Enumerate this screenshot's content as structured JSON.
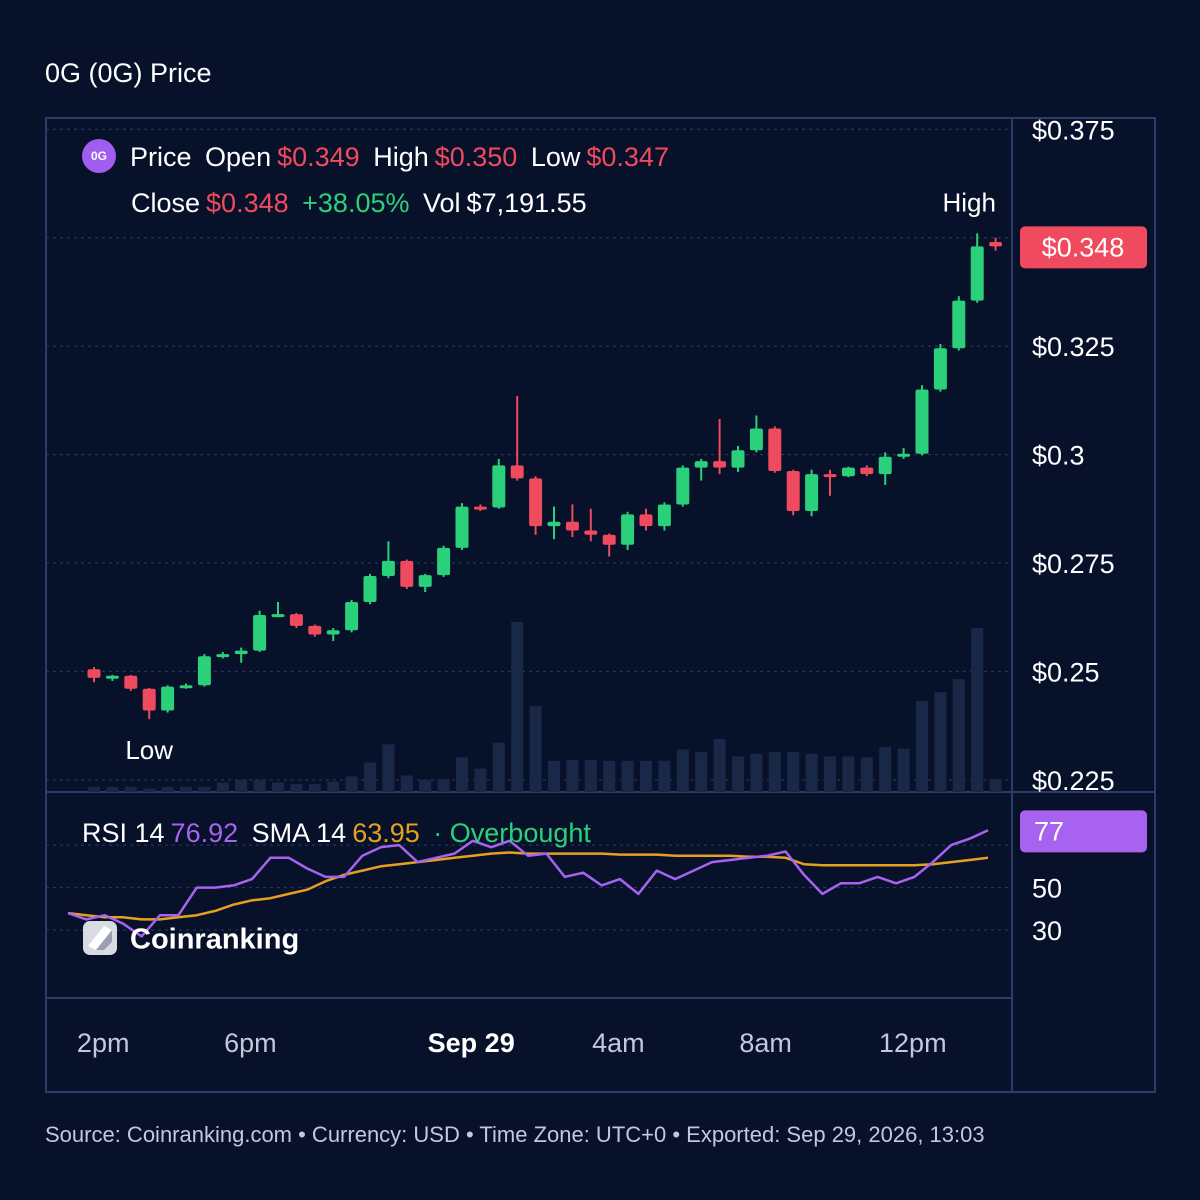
{
  "page_title": "0G (0G) Price",
  "legend": {
    "price_label": "Price",
    "open_label": "Open",
    "open_value": "$0.349",
    "high_label": "High",
    "high_value": "$0.350",
    "low_label": "Low",
    "low_value": "$0.347",
    "close_label": "Close",
    "close_value": "$0.348",
    "change": "+38.05%",
    "vol_label": "Vol",
    "vol_value": "$7,191.55"
  },
  "rsi_legend": {
    "rsi_label": "RSI 14",
    "rsi_value": "76.92",
    "sma_label": "SMA 14",
    "sma_value": "63.95",
    "status": "· Overbought"
  },
  "brand": "Coinranking",
  "footer": "Source: Coinranking.com • Currency: USD • Time Zone: UTC+0 • Exported: Sep 29, 2026, 13:03",
  "colors": {
    "up": "#2bd07a",
    "down": "#f04a5e",
    "rsi": "#a763f0",
    "sma": "#e6a020",
    "grid": "#2a3d66",
    "volume": "#1a2848",
    "background": "#07112a"
  },
  "chart_data": {
    "type": "candlestick",
    "price_axis": {
      "ticks": [
        0.375,
        0.325,
        0.3,
        0.275,
        0.25,
        0.225
      ],
      "tick_labels": [
        "$0.375",
        "$0.325",
        "$0.3",
        "$0.275",
        "$0.25",
        "$0.225"
      ],
      "range": [
        0.2222,
        0.3776
      ]
    },
    "x_axis_labels": [
      {
        "label": "2pm",
        "index": 0.5,
        "bold": false
      },
      {
        "label": "6pm",
        "index": 8.5,
        "bold": false
      },
      {
        "label": "Sep 29",
        "index": 20.5,
        "bold": true
      },
      {
        "label": "4am",
        "index": 28.5,
        "bold": false
      },
      {
        "label": "8am",
        "index": 36.5,
        "bold": false
      },
      {
        "label": "12pm",
        "index": 44.5,
        "bold": false
      }
    ],
    "current_price_label": "$0.348",
    "current_price": 0.348,
    "high_annotation": "High",
    "low_annotation": "Low",
    "candles": [
      {
        "o": 0.2505,
        "h": 0.251,
        "l": 0.2475,
        "c": 0.2485
      },
      {
        "o": 0.2485,
        "h": 0.2492,
        "l": 0.2478,
        "c": 0.249
      },
      {
        "o": 0.249,
        "h": 0.2492,
        "l": 0.2455,
        "c": 0.246
      },
      {
        "o": 0.246,
        "h": 0.2462,
        "l": 0.239,
        "c": 0.241
      },
      {
        "o": 0.241,
        "h": 0.2468,
        "l": 0.2405,
        "c": 0.2465
      },
      {
        "o": 0.2465,
        "h": 0.2472,
        "l": 0.246,
        "c": 0.2468
      },
      {
        "o": 0.2468,
        "h": 0.254,
        "l": 0.2465,
        "c": 0.2535
      },
      {
        "o": 0.2535,
        "h": 0.2545,
        "l": 0.253,
        "c": 0.254
      },
      {
        "o": 0.254,
        "h": 0.2555,
        "l": 0.252,
        "c": 0.2548
      },
      {
        "o": 0.2548,
        "h": 0.264,
        "l": 0.2545,
        "c": 0.263
      },
      {
        "o": 0.263,
        "h": 0.266,
        "l": 0.2625,
        "c": 0.2632
      },
      {
        "o": 0.2632,
        "h": 0.2635,
        "l": 0.26,
        "c": 0.2605
      },
      {
        "o": 0.2605,
        "h": 0.2608,
        "l": 0.258,
        "c": 0.2585
      },
      {
        "o": 0.2585,
        "h": 0.26,
        "l": 0.257,
        "c": 0.2595
      },
      {
        "o": 0.2595,
        "h": 0.2665,
        "l": 0.259,
        "c": 0.266
      },
      {
        "o": 0.266,
        "h": 0.2725,
        "l": 0.2655,
        "c": 0.272
      },
      {
        "o": 0.272,
        "h": 0.28,
        "l": 0.2715,
        "c": 0.2755
      },
      {
        "o": 0.2755,
        "h": 0.2758,
        "l": 0.269,
        "c": 0.2695
      },
      {
        "o": 0.2695,
        "h": 0.2725,
        "l": 0.2683,
        "c": 0.2722
      },
      {
        "o": 0.2722,
        "h": 0.279,
        "l": 0.2718,
        "c": 0.2785
      },
      {
        "o": 0.2785,
        "h": 0.2888,
        "l": 0.278,
        "c": 0.288
      },
      {
        "o": 0.288,
        "h": 0.2885,
        "l": 0.287,
        "c": 0.2878
      },
      {
        "o": 0.2878,
        "h": 0.299,
        "l": 0.2875,
        "c": 0.2975
      },
      {
        "o": 0.2975,
        "h": 0.3135,
        "l": 0.294,
        "c": 0.2945
      },
      {
        "o": 0.2945,
        "h": 0.295,
        "l": 0.2815,
        "c": 0.2835
      },
      {
        "o": 0.2835,
        "h": 0.288,
        "l": 0.2805,
        "c": 0.2845
      },
      {
        "o": 0.2845,
        "h": 0.2885,
        "l": 0.281,
        "c": 0.2825
      },
      {
        "o": 0.2825,
        "h": 0.2875,
        "l": 0.28,
        "c": 0.2815
      },
      {
        "o": 0.2815,
        "h": 0.2818,
        "l": 0.2765,
        "c": 0.2792
      },
      {
        "o": 0.2792,
        "h": 0.2868,
        "l": 0.278,
        "c": 0.2862
      },
      {
        "o": 0.2862,
        "h": 0.2875,
        "l": 0.2825,
        "c": 0.2835
      },
      {
        "o": 0.2835,
        "h": 0.289,
        "l": 0.2825,
        "c": 0.2885
      },
      {
        "o": 0.2885,
        "h": 0.2975,
        "l": 0.288,
        "c": 0.297
      },
      {
        "o": 0.297,
        "h": 0.299,
        "l": 0.294,
        "c": 0.2985
      },
      {
        "o": 0.2985,
        "h": 0.3082,
        "l": 0.2955,
        "c": 0.297
      },
      {
        "o": 0.297,
        "h": 0.302,
        "l": 0.296,
        "c": 0.301
      },
      {
        "o": 0.301,
        "h": 0.309,
        "l": 0.3005,
        "c": 0.306
      },
      {
        "o": 0.306,
        "h": 0.3065,
        "l": 0.2958,
        "c": 0.2962
      },
      {
        "o": 0.2962,
        "h": 0.2965,
        "l": 0.286,
        "c": 0.287
      },
      {
        "o": 0.287,
        "h": 0.2965,
        "l": 0.2858,
        "c": 0.2955
      },
      {
        "o": 0.2955,
        "h": 0.2965,
        "l": 0.2905,
        "c": 0.295
      },
      {
        "o": 0.295,
        "h": 0.2972,
        "l": 0.2948,
        "c": 0.297
      },
      {
        "o": 0.297,
        "h": 0.2975,
        "l": 0.295,
        "c": 0.2955
      },
      {
        "o": 0.2955,
        "h": 0.3005,
        "l": 0.293,
        "c": 0.2995
      },
      {
        "o": 0.2995,
        "h": 0.3015,
        "l": 0.299,
        "c": 0.3002
      },
      {
        "o": 0.3002,
        "h": 0.316,
        "l": 0.2998,
        "c": 0.315
      },
      {
        "o": 0.315,
        "h": 0.3255,
        "l": 0.3145,
        "c": 0.3245
      },
      {
        "o": 0.3245,
        "h": 0.3365,
        "l": 0.324,
        "c": 0.3355
      },
      {
        "o": 0.3355,
        "h": 0.351,
        "l": 0.335,
        "c": 0.348
      },
      {
        "o": 0.349,
        "h": 0.35,
        "l": 0.347,
        "c": 0.348
      }
    ],
    "volume": [
      0.6,
      0.6,
      0.6,
      0.4,
      0.6,
      0.6,
      0.6,
      1.1,
      1.4,
      1.4,
      1.1,
      0.9,
      0.9,
      1.2,
      1.8,
      3.4,
      5.5,
      1.9,
      1.4,
      1.5,
      4.0,
      2.7,
      5.7,
      19.6,
      9.9,
      3.6,
      3.7,
      3.7,
      3.6,
      3.6,
      3.6,
      3.6,
      4.9,
      4.6,
      6.1,
      4.1,
      4.4,
      4.6,
      4.6,
      4.4,
      4.1,
      4.1,
      4.0,
      5.2,
      5.0,
      10.5,
      11.5,
      13.0,
      18.9,
      1.5
    ],
    "rsi": {
      "axis_ticks": [
        70,
        50,
        30
      ],
      "axis_tick_labels": [
        "",
        "50",
        "30"
      ],
      "current_label": "77",
      "current": 76.92,
      "range": [
        -2,
        95
      ],
      "rsi_values": [
        38,
        35,
        37,
        33,
        27,
        37,
        37,
        50,
        50,
        51,
        54,
        64,
        64,
        59,
        55,
        55,
        65,
        69,
        70,
        62,
        64,
        66,
        72,
        69,
        72,
        65,
        66,
        55,
        57,
        51,
        54,
        47,
        58,
        54,
        58,
        62,
        63,
        64,
        65,
        67,
        56,
        47,
        52,
        52,
        55,
        52,
        55,
        62,
        70,
        73,
        77
      ],
      "sma_values": [
        38,
        37,
        36,
        36,
        35,
        35,
        36,
        37,
        39,
        42,
        44,
        45,
        47,
        49,
        53,
        56,
        58,
        60,
        61,
        62,
        63,
        64,
        65,
        66,
        66.5,
        66,
        66,
        66,
        66,
        66,
        65.5,
        65.5,
        65.5,
        65,
        65,
        65,
        65,
        64.5,
        64.5,
        64,
        61,
        60.5,
        60.5,
        60.5,
        60.5,
        60.5,
        60.5,
        61,
        62,
        63,
        64
      ]
    }
  }
}
